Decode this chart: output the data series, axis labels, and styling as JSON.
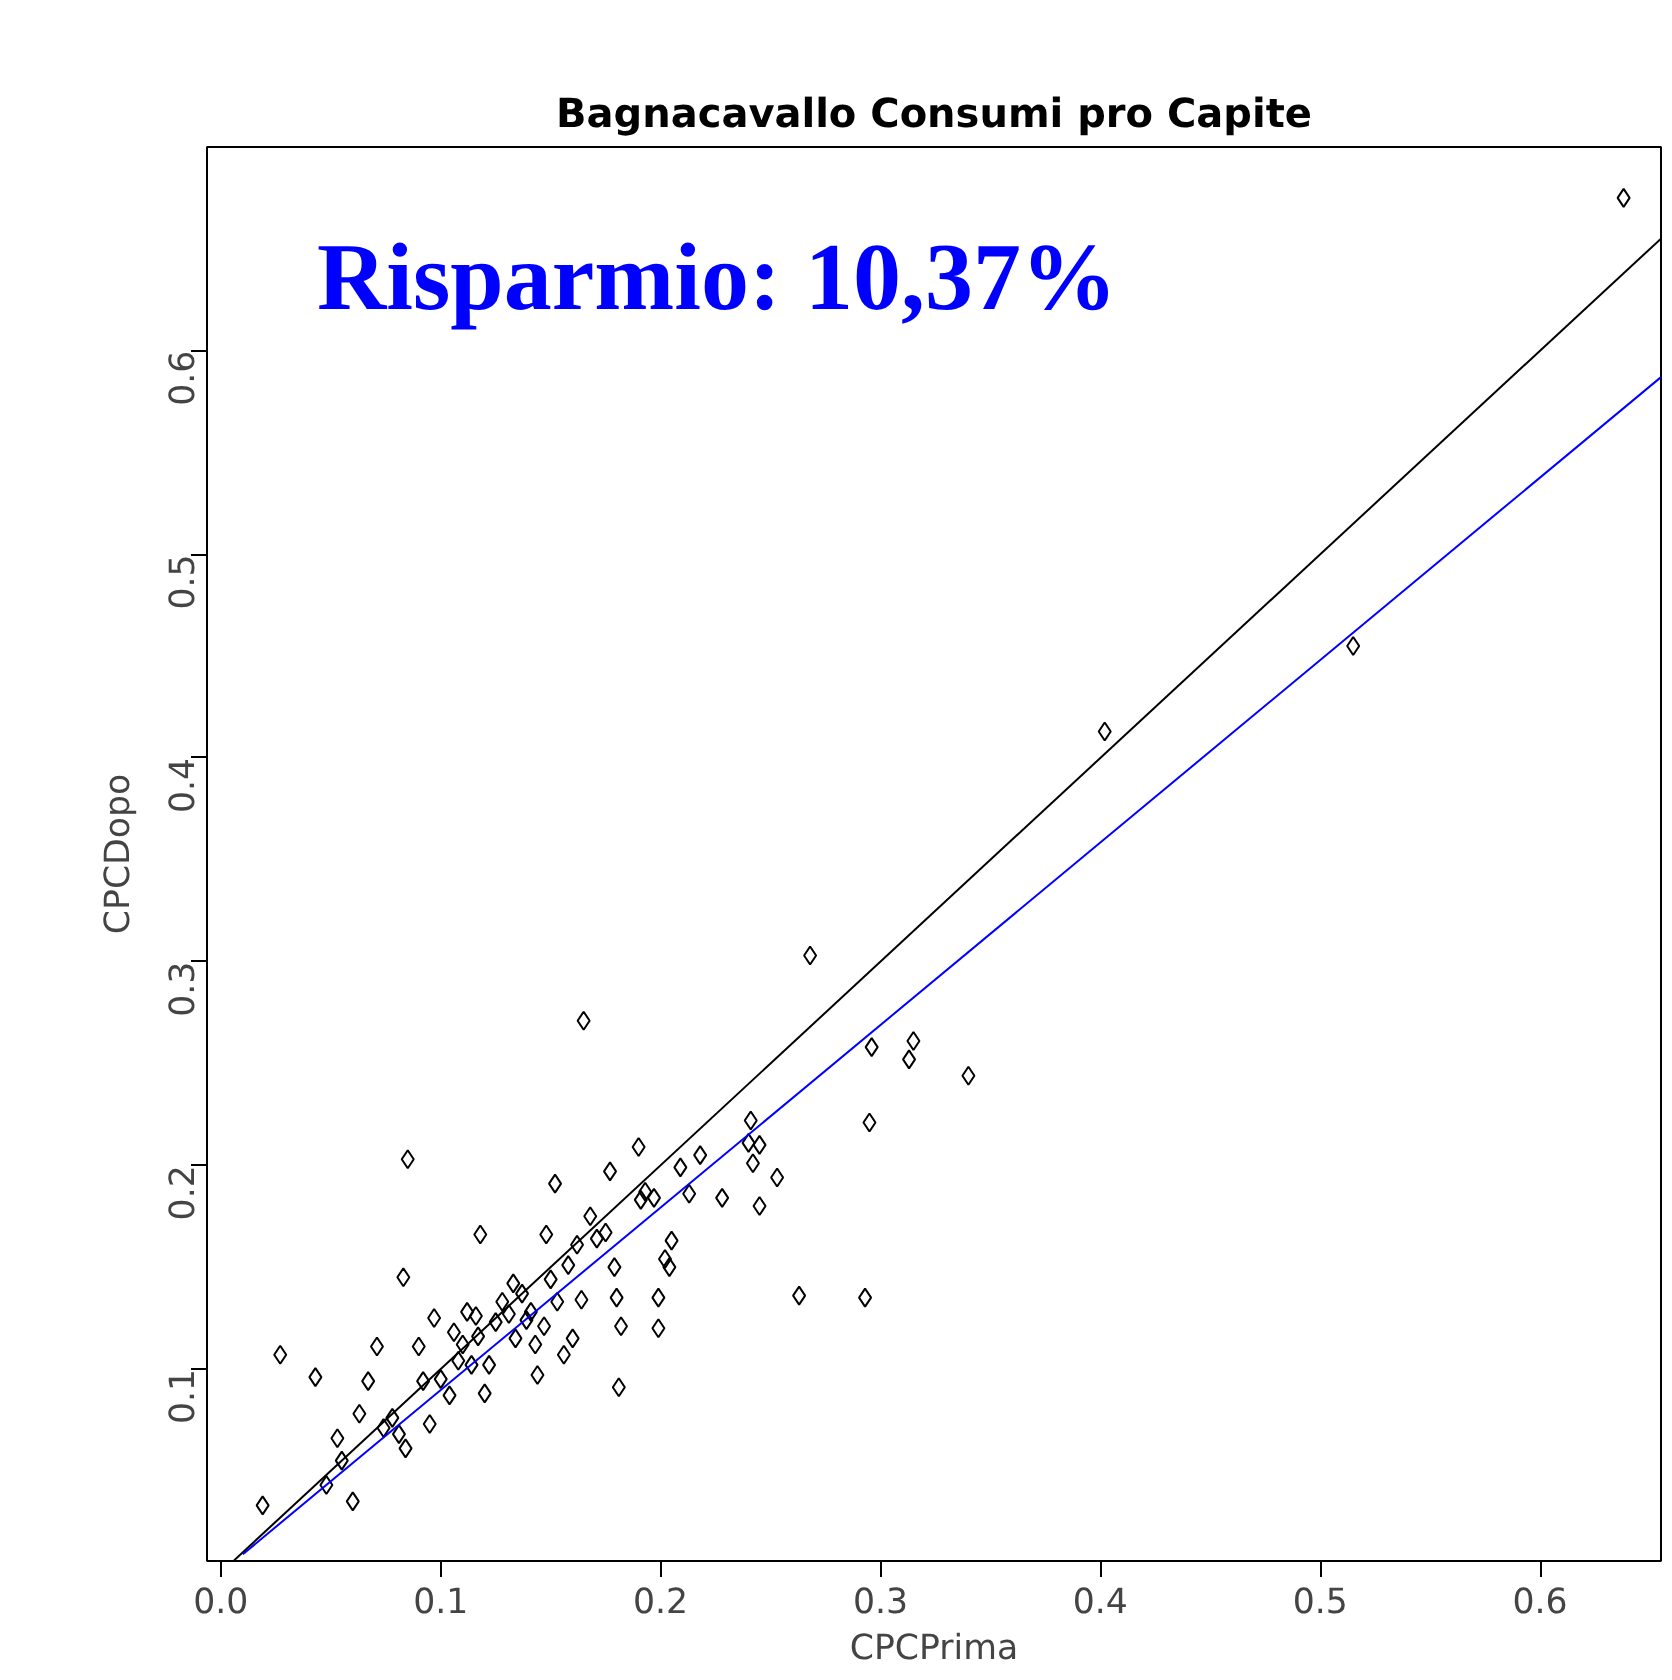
{
  "chart_data": {
    "type": "scatter",
    "title": "Bagnacavallo Consumi pro Capite",
    "xlabel": "CPCPrima",
    "ylabel": "CPCDopo",
    "annotations": [
      "Risparmio: 10,37%"
    ],
    "xlim": [
      -0.0063,
      0.655
    ],
    "ylim": [
      0.0057,
      0.7
    ],
    "xticks": [
      {
        "value": 0,
        "label": "0.0"
      },
      0.1,
      0.2,
      0.3,
      0.4,
      0.5,
      0.6
    ],
    "yticks": [
      0.1,
      0.2,
      0.3,
      0.4,
      0.5,
      0.6
    ],
    "grid": false,
    "series": [
      {
        "color": "#000000",
        "marker": "diamond",
        "x": [
          0.019,
          0.027,
          0.043,
          0.048,
          0.053,
          0.06,
          0.055,
          0.063,
          0.067,
          0.071,
          0.074,
          0.078,
          0.081,
          0.084,
          0.083,
          0.085,
          0.09,
          0.092,
          0.095,
          0.097,
          0.1,
          0.104,
          0.106,
          0.108,
          0.11,
          0.112,
          0.114,
          0.116,
          0.117,
          0.118,
          0.12,
          0.122,
          0.125,
          0.128,
          0.131,
          0.133,
          0.134,
          0.137,
          0.139,
          0.141,
          0.143,
          0.144,
          0.147,
          0.148,
          0.15,
          0.152,
          0.153,
          0.156,
          0.158,
          0.16,
          0.162,
          0.164,
          0.165,
          0.168,
          0.171,
          0.175,
          0.177,
          0.179,
          0.18,
          0.182,
          0.181,
          0.19,
          0.191,
          0.193,
          0.197,
          0.199,
          0.199,
          0.202,
          0.204,
          0.205,
          0.209,
          0.213,
          0.218,
          0.228,
          0.24,
          0.241,
          0.242,
          0.245,
          0.245,
          0.253,
          0.263,
          0.268,
          0.296,
          0.295,
          0.293,
          0.313,
          0.315,
          0.34,
          0.402,
          0.515,
          0.638
        ],
        "values": [
          0.033,
          0.107,
          0.096,
          0.043,
          0.066,
          0.035,
          0.055,
          0.078,
          0.094,
          0.111,
          0.071,
          0.076,
          0.068,
          0.061,
          0.145,
          0.203,
          0.111,
          0.094,
          0.073,
          0.125,
          0.095,
          0.087,
          0.118,
          0.104,
          0.112,
          0.128,
          0.102,
          0.126,
          0.116,
          0.166,
          0.088,
          0.102,
          0.123,
          0.133,
          0.127,
          0.142,
          0.115,
          0.137,
          0.124,
          0.128,
          0.112,
          0.097,
          0.121,
          0.166,
          0.144,
          0.191,
          0.133,
          0.107,
          0.151,
          0.115,
          0.161,
          0.134,
          0.271,
          0.175,
          0.164,
          0.167,
          0.197,
          0.15,
          0.135,
          0.121,
          0.091,
          0.209,
          0.183,
          0.187,
          0.184,
          0.135,
          0.12,
          0.154,
          0.15,
          0.163,
          0.199,
          0.186,
          0.205,
          0.184,
          0.211,
          0.222,
          0.201,
          0.21,
          0.18,
          0.194,
          0.136,
          0.303,
          0.258,
          0.221,
          0.135,
          0.252,
          0.261,
          0.244,
          0.413,
          0.455,
          0.675
        ]
      },
      {
        "type": "line",
        "marker": "none",
        "color": "#000000",
        "x": [
          0.006,
          0.655
        ],
        "values": [
          0.006,
          0.655
        ]
      },
      {
        "type": "line",
        "marker": "none",
        "color": "#0000ff",
        "x": [
          0.01,
          0.655
        ],
        "values": [
          0.009,
          0.587
        ]
      }
    ]
  }
}
